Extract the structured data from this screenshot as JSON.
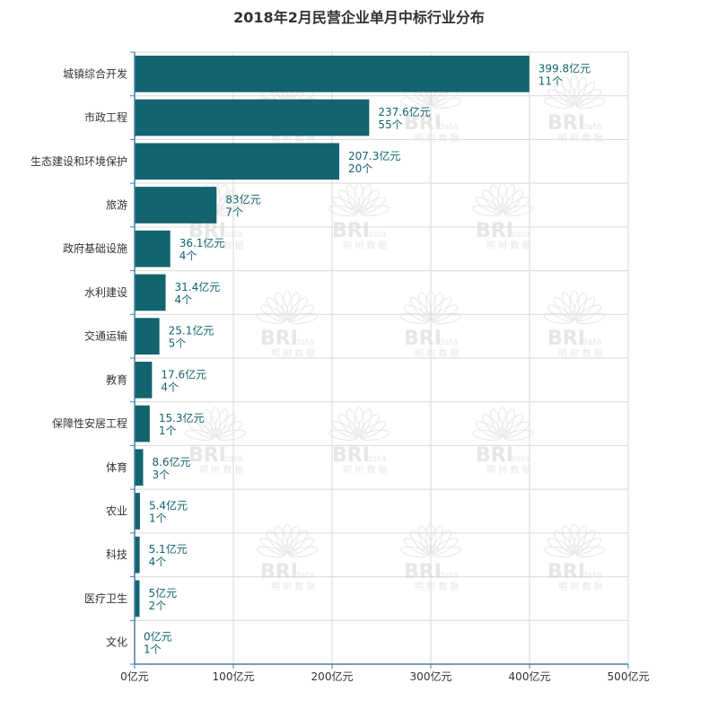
{
  "chart_data": {
    "type": "bar",
    "orientation": "horizontal",
    "title": "2018年2月民营企业单月中标行业分布",
    "categories": [
      "城镇综合开发",
      "市政工程",
      "生态建设和环境保护",
      "旅游",
      "政府基础设施",
      "水利建设",
      "交通运输",
      "教育",
      "保障性安居工程",
      "体育",
      "农业",
      "科技",
      "医疗卫生",
      "文化"
    ],
    "values": [
      399.8,
      237.6,
      207.3,
      83,
      36.1,
      31.4,
      25.1,
      17.6,
      15.3,
      8.6,
      5.4,
      5.1,
      5,
      0
    ],
    "counts": [
      11,
      55,
      20,
      7,
      4,
      4,
      5,
      4,
      1,
      3,
      1,
      4,
      2,
      1
    ],
    "value_labels": [
      "399.8亿元",
      "237.6亿元",
      "207.3亿元",
      "83亿元",
      "36.1亿元",
      "31.4亿元",
      "25.1亿元",
      "17.6亿元",
      "15.3亿元",
      "8.6亿元",
      "5.4亿元",
      "5.1亿元",
      "5亿元",
      "0亿元"
    ],
    "count_labels": [
      "11个",
      "55个",
      "20个",
      "7个",
      "4个",
      "4个",
      "5个",
      "4个",
      "1个",
      "3个",
      "1个",
      "4个",
      "2个",
      "1个"
    ],
    "xlim": [
      0,
      500
    ],
    "x_ticks": [
      0,
      100,
      200,
      300,
      400,
      500
    ],
    "x_tick_labels": [
      "0亿元",
      "100亿元",
      "200亿元",
      "300亿元",
      "400亿元",
      "500亿元"
    ],
    "grid": true,
    "colors": {
      "bar": "#12646f",
      "label": "#12646f",
      "grid": "#d9d9d9",
      "axis": "#4a7fa7",
      "text": "#333333"
    }
  },
  "watermark": {
    "brand": "BRI",
    "brand_suffix": "data",
    "sub": "明 树 数 据"
  }
}
